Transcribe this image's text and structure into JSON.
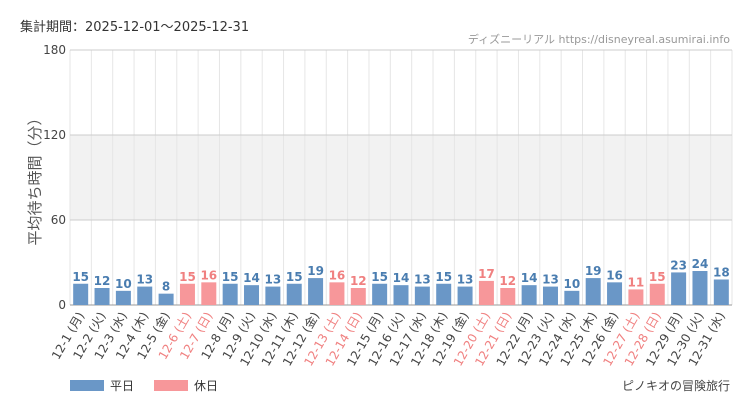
{
  "header": {
    "period": "集計期間：2025-12-01～2025-12-31",
    "source": "ディズニーリアル https://disneyreal.asumirai.info",
    "attraction": "ピノキオの冒険旅行"
  },
  "colors": {
    "weekday": "#6a97c7",
    "holiday": "#f7979a",
    "weekday_label": "#4a7db0",
    "holiday_label": "#f08080",
    "tick_label": "#444444",
    "band": "#f2f2f2",
    "grid": "#e6e6e6"
  },
  "legend": {
    "weekday": "平日",
    "holiday": "休日"
  },
  "chart_data": {
    "type": "bar",
    "ylabel": "平均待ち時間（分）",
    "ylim": [
      0,
      180
    ],
    "yticks": [
      0,
      60,
      120,
      180
    ],
    "shaded_band": [
      60,
      120
    ],
    "categories": [
      "12-1 (月)",
      "12-2 (火)",
      "12-3 (水)",
      "12-4 (木)",
      "12-5 (金)",
      "12-6 (土)",
      "12-7 (日)",
      "12-8 (月)",
      "12-9 (火)",
      "12-10 (水)",
      "12-11 (木)",
      "12-12 (金)",
      "12-13 (土)",
      "12-14 (日)",
      "12-15 (月)",
      "12-16 (火)",
      "12-17 (水)",
      "12-18 (木)",
      "12-19 (金)",
      "12-20 (土)",
      "12-21 (日)",
      "12-22 (月)",
      "12-23 (火)",
      "12-24 (水)",
      "12-25 (木)",
      "12-26 (金)",
      "12-27 (土)",
      "12-28 (日)",
      "12-29 (月)",
      "12-30 (火)",
      "12-31 (水)"
    ],
    "values": [
      15,
      12,
      10,
      13,
      8,
      15,
      16,
      15,
      14,
      13,
      15,
      19,
      16,
      12,
      15,
      14,
      13,
      15,
      13,
      17,
      12,
      14,
      13,
      10,
      19,
      16,
      11,
      15,
      23,
      24,
      18
    ],
    "day_type": [
      "平日",
      "平日",
      "平日",
      "平日",
      "平日",
      "休日",
      "休日",
      "平日",
      "平日",
      "平日",
      "平日",
      "平日",
      "休日",
      "休日",
      "平日",
      "平日",
      "平日",
      "平日",
      "平日",
      "休日",
      "休日",
      "平日",
      "平日",
      "平日",
      "平日",
      "平日",
      "休日",
      "休日",
      "平日",
      "平日",
      "平日"
    ],
    "grid": true,
    "legend_position": "bottom-left"
  }
}
